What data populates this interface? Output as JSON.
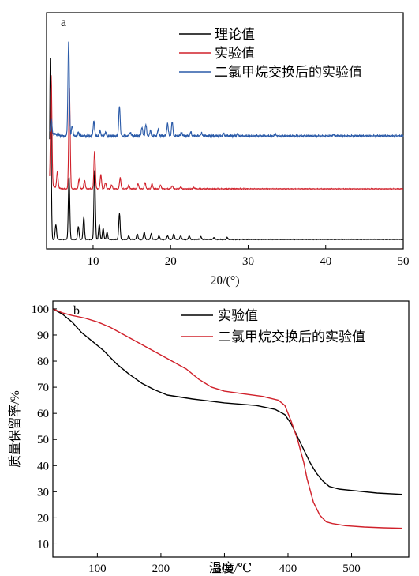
{
  "chart_data": [
    {
      "type": "line",
      "panel_label": "a",
      "xlabel": "2θ/(°)",
      "xlim": [
        4,
        50
      ],
      "xticks": [
        10,
        20,
        30,
        40,
        50
      ],
      "colors": {
        "theory": "#000000",
        "experiment": "#d0202a",
        "exchanged": "#2a5aa8"
      },
      "legend_placement": "top-right",
      "series": [
        {
          "key": "theory",
          "name": "理论值",
          "baseline": 0,
          "peaks": [
            [
              4.5,
              100
            ],
            [
              5.2,
              8
            ],
            [
              6.9,
              34
            ],
            [
              8.1,
              7
            ],
            [
              8.8,
              12
            ],
            [
              10.2,
              37
            ],
            [
              10.8,
              8
            ],
            [
              11.3,
              6
            ],
            [
              11.8,
              4
            ],
            [
              13.4,
              14
            ],
            [
              14.6,
              2
            ],
            [
              15.7,
              3
            ],
            [
              16.6,
              4
            ],
            [
              17.5,
              3
            ],
            [
              18.5,
              2
            ],
            [
              19.6,
              2
            ],
            [
              20.4,
              3
            ],
            [
              21.3,
              2
            ],
            [
              22.4,
              2
            ],
            [
              23.9,
              1.5
            ],
            [
              25.6,
              1
            ],
            [
              27.3,
              1
            ]
          ]
        },
        {
          "key": "experiment",
          "name": "实验值",
          "baseline": 0,
          "peaks": [
            [
              4.6,
              88
            ],
            [
              5.4,
              13
            ],
            [
              6.95,
              80
            ],
            [
              8.2,
              8
            ],
            [
              8.9,
              7
            ],
            [
              10.2,
              30
            ],
            [
              11.0,
              11
            ],
            [
              11.6,
              5
            ],
            [
              12.4,
              3
            ],
            [
              13.5,
              9
            ],
            [
              14.6,
              3
            ],
            [
              15.8,
              4
            ],
            [
              16.7,
              5
            ],
            [
              17.6,
              4
            ],
            [
              18.7,
              3
            ],
            [
              20.2,
              2.5
            ],
            [
              21.3,
              1.5
            ],
            [
              23.0,
              1
            ]
          ]
        },
        {
          "key": "exchanged",
          "name": "二氯甲烷交换后的实验值",
          "baseline": 0,
          "peaks": [
            [
              4.6,
              12
            ],
            [
              6.85,
              76
            ],
            [
              7.3,
              8
            ],
            [
              8.1,
              3
            ],
            [
              10.1,
              12
            ],
            [
              10.9,
              4
            ],
            [
              11.6,
              3
            ],
            [
              13.4,
              24
            ],
            [
              14.8,
              3
            ],
            [
              16.3,
              7
            ],
            [
              16.8,
              9
            ],
            [
              17.4,
              4
            ],
            [
              18.4,
              5
            ],
            [
              19.6,
              10
            ],
            [
              20.2,
              11
            ],
            [
              21.4,
              3
            ],
            [
              22.6,
              3
            ],
            [
              24.0,
              2
            ],
            [
              26.8,
              2
            ],
            [
              28.6,
              1.5
            ],
            [
              33.5,
              1.5
            ],
            [
              41.0,
              1
            ]
          ]
        }
      ]
    },
    {
      "type": "line",
      "panel_label": "b",
      "xlabel": "温度/℃",
      "ylabel": "质量保留率/%",
      "xlim": [
        30,
        590
      ],
      "ylim": [
        5,
        103
      ],
      "xticks": [
        100,
        200,
        300,
        400,
        500
      ],
      "yticks": [
        10,
        20,
        30,
        40,
        50,
        60,
        70,
        80,
        90,
        100
      ],
      "legend_placement": "top-right",
      "series": [
        {
          "name": "实验值",
          "color": "#000000",
          "x": [
            30,
            45,
            60,
            75,
            90,
            110,
            130,
            150,
            170,
            190,
            210,
            250,
            300,
            350,
            380,
            395,
            405,
            415,
            425,
            435,
            445,
            455,
            465,
            480,
            500,
            540,
            580
          ],
          "y": [
            100,
            98,
            95,
            91,
            88,
            84,
            79,
            75,
            71.5,
            69,
            67,
            65.5,
            64,
            63,
            61.5,
            59.5,
            56,
            51,
            46,
            41,
            37,
            34,
            32,
            31,
            30.5,
            29.5,
            29
          ]
        },
        {
          "name": "二氯甲烷交换后的实验值",
          "color": "#d0202a",
          "x": [
            30,
            45,
            60,
            80,
            100,
            120,
            150,
            180,
            210,
            240,
            260,
            280,
            300,
            330,
            360,
            385,
            395,
            405,
            415,
            425,
            430,
            440,
            450,
            460,
            470,
            490,
            520,
            550,
            580
          ],
          "y": [
            100,
            98.5,
            97.5,
            96.5,
            95,
            93,
            89,
            85,
            81,
            77,
            73,
            70,
            68.5,
            67.5,
            66.5,
            65,
            63,
            57,
            50,
            41,
            35,
            26,
            21,
            18.5,
            17.8,
            17,
            16.5,
            16.2,
            16
          ]
        }
      ]
    }
  ]
}
